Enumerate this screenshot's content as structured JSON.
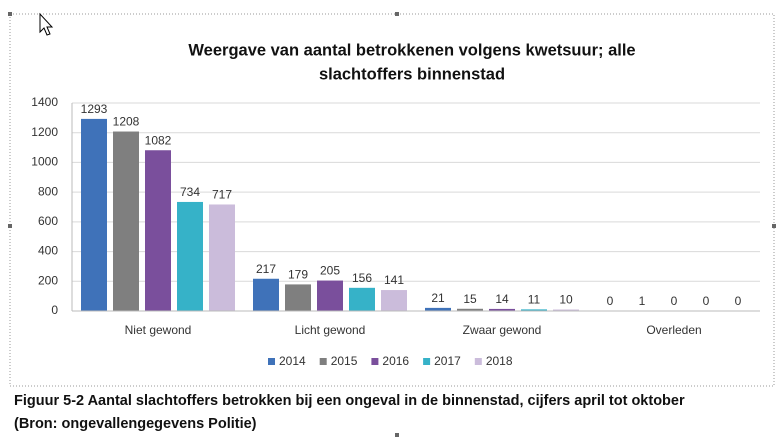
{
  "chart_data": {
    "type": "bar",
    "title": [
      "Weergave van aantal betrokkenen volgens kwetsuur; alle",
      "slachtoffers binnenstad"
    ],
    "categories": [
      "Niet gewond",
      "Licht gewond",
      "Zwaar gewond",
      "Overleden"
    ],
    "series": [
      {
        "name": "2014",
        "color": "#3f72b9",
        "values": [
          1293,
          217,
          21,
          0
        ]
      },
      {
        "name": "2015",
        "color": "#7f7f7f",
        "values": [
          1208,
          179,
          15,
          1
        ]
      },
      {
        "name": "2016",
        "color": "#7a4f9c",
        "values": [
          1082,
          205,
          14,
          0
        ]
      },
      {
        "name": "2017",
        "color": "#36b2c8",
        "values": [
          734,
          156,
          11,
          0
        ]
      },
      {
        "name": "2018",
        "color": "#cbbcdb",
        "values": [
          717,
          141,
          10,
          0
        ]
      }
    ],
    "ylim": [
      0,
      1400
    ],
    "yticks": [
      0,
      200,
      400,
      600,
      800,
      1000,
      1200,
      1400
    ],
    "grid": true,
    "legend": "bottom"
  },
  "caption": [
    "Figuur 5-2 Aantal slachtoffers betrokken bij een ongeval in de binnenstad, cijfers april tot oktober",
    "(Bron: ongevallengegevens Politie)"
  ]
}
